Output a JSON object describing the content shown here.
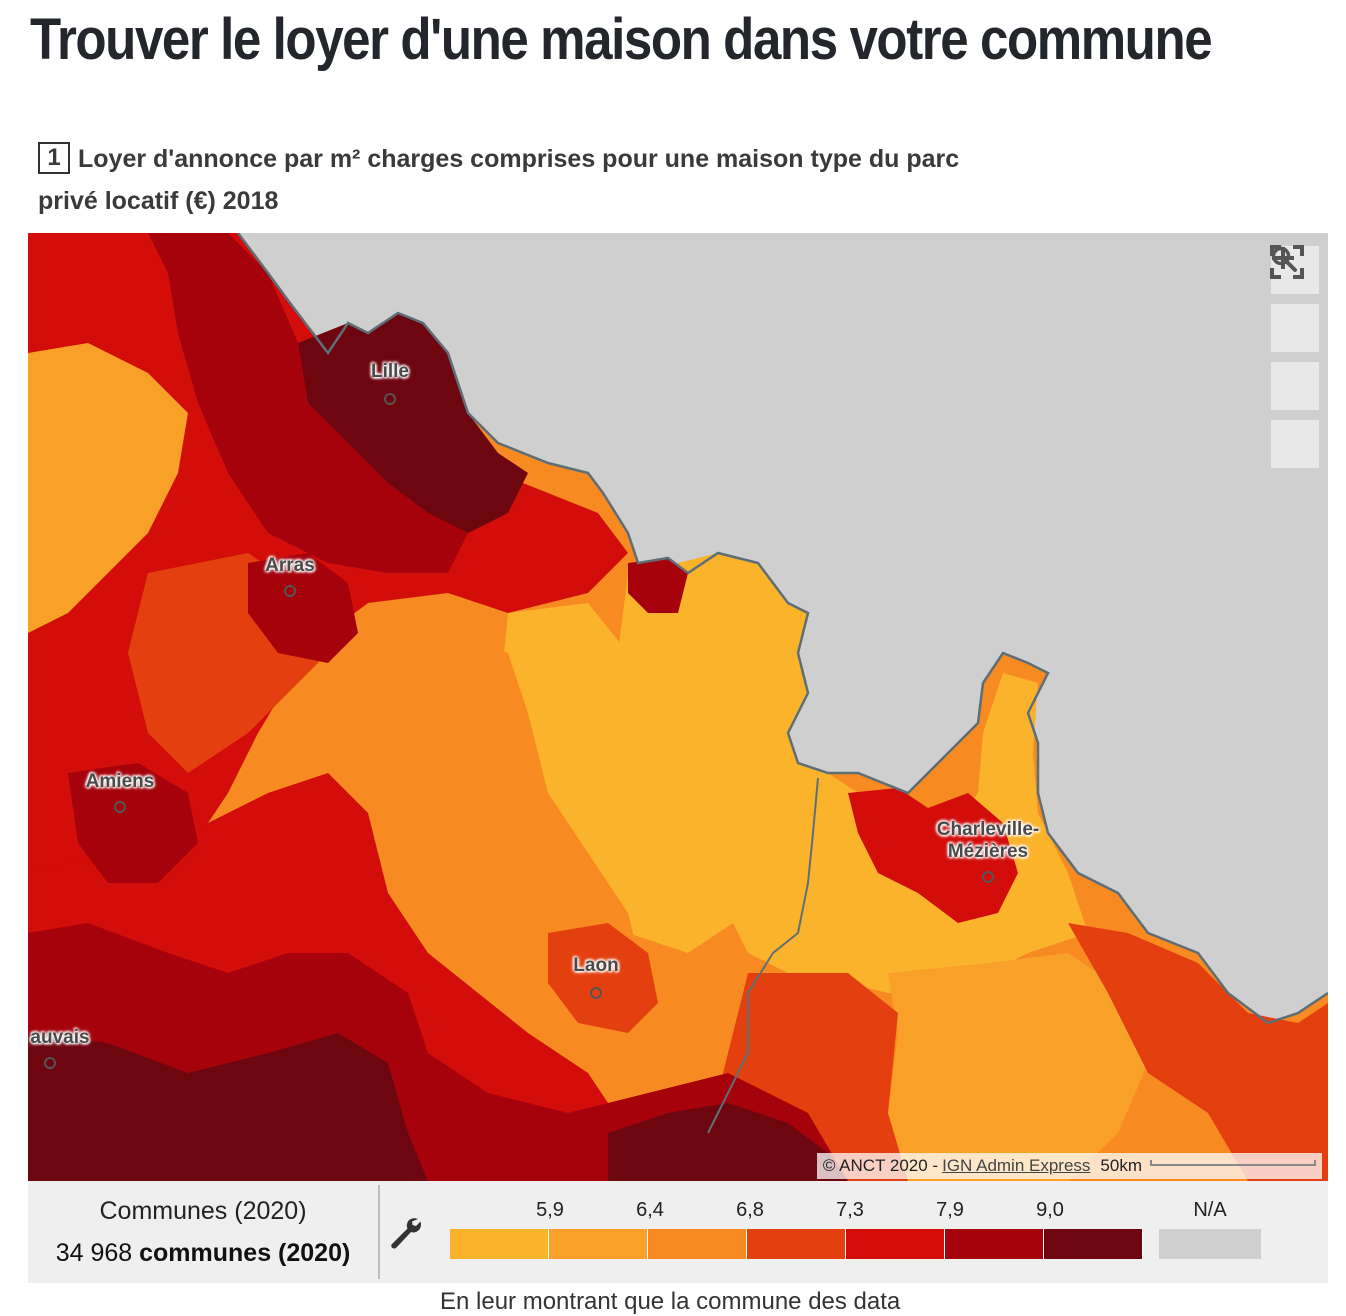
{
  "page": {
    "title": "Trouver le loyer d'une maison dans votre commune",
    "footer_text": "En leur montrant que la commune des data"
  },
  "map": {
    "number": "1",
    "heading_line1": "Loyer d'annonce par m² charges comprises pour une maison type du parc",
    "heading_line2": "privé locatif (€) 2018",
    "cities": [
      {
        "name": "Lille"
      },
      {
        "name": "Arras"
      },
      {
        "name": "Amiens"
      },
      {
        "name": "Charleville-\nMézières"
      },
      {
        "name": "Laon"
      },
      {
        "name": "auvais"
      }
    ],
    "controls": {
      "zoom_in_icon": "plus-icon",
      "zoom_out_icon": "minus-icon",
      "search_icon": "search-icon",
      "fullscreen_icon": "fullscreen-icon"
    },
    "attribution": {
      "copyright": "© ANCT 2020 -",
      "source_link": "IGN Admin Express",
      "scale": "50km"
    },
    "colors": {
      "nodata": "#cfcfcf",
      "border": "#5e6e77"
    }
  },
  "legend": {
    "layer_name": "Communes (2020)",
    "count_number": "34 968",
    "count_label": "communes (2020)",
    "tool_icon": "wrench-icon",
    "ticks": [
      "5,9",
      "6,4",
      "6,8",
      "7,3",
      "7,9",
      "9,0"
    ],
    "colors": [
      "#fbb32c",
      "#f9a029",
      "#f78b22",
      "#e4400f",
      "#d20d0a",
      "#a5020b",
      "#6e0610"
    ],
    "na_label": "N/A",
    "na_color": "#cfcfcf"
  }
}
